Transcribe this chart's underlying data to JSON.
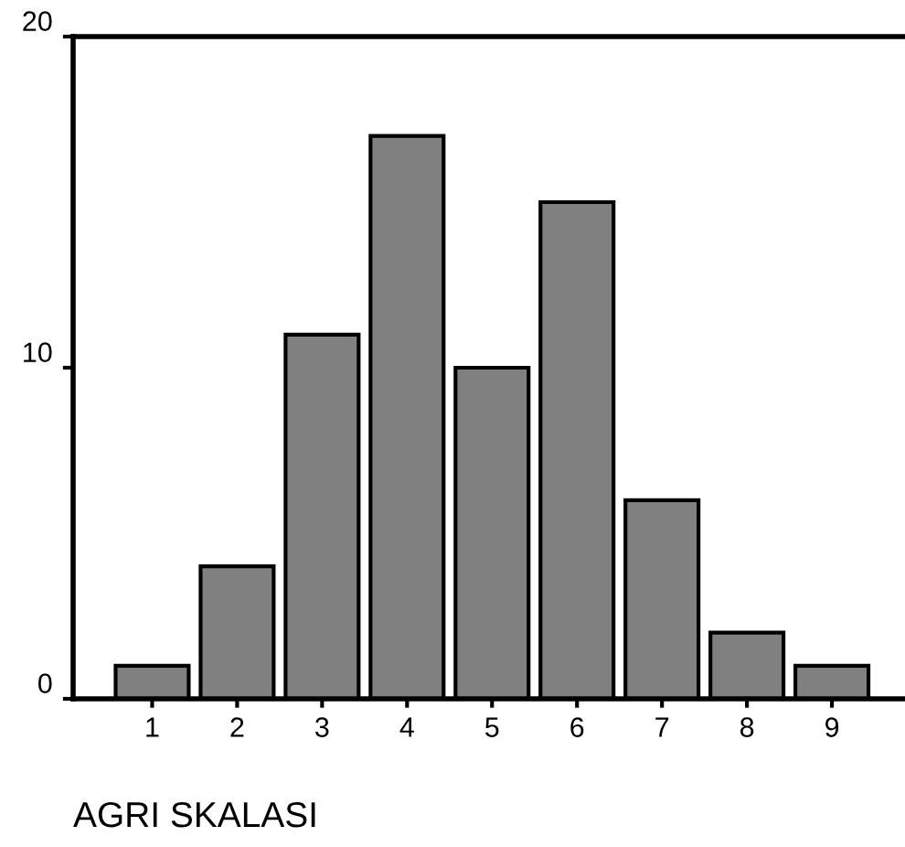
{
  "chart_data": {
    "type": "bar",
    "xlabel": "AGRI SKALASI",
    "categories": [
      "1",
      "2",
      "3",
      "4",
      "5",
      "6",
      "7",
      "8",
      "9"
    ],
    "values": [
      1,
      4,
      11,
      17,
      10,
      15,
      6,
      2,
      1
    ],
    "color": "#808080",
    "ylim": [
      0,
      20
    ],
    "yticks": [
      0,
      10,
      20
    ],
    "grid": false
  }
}
